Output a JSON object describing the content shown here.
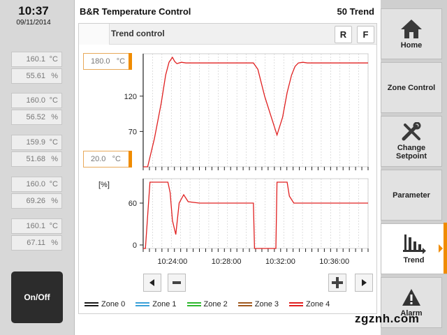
{
  "clock": {
    "time": "10:37",
    "date": "09/11/2014"
  },
  "zones": [
    {
      "temp": "160.1",
      "temp_unit": "°C",
      "output": "55.61",
      "output_unit": "%"
    },
    {
      "temp": "160.0",
      "temp_unit": "°C",
      "output": "56.52",
      "output_unit": "%"
    },
    {
      "temp": "159.9",
      "temp_unit": "°C",
      "output": "51.68",
      "output_unit": "%"
    },
    {
      "temp": "160.0",
      "temp_unit": "°C",
      "output": "69.26",
      "output_unit": "%"
    },
    {
      "temp": "160.1",
      "temp_unit": "°C",
      "output": "67.11",
      "output_unit": "%"
    }
  ],
  "onoff_label": "On/Off",
  "header": {
    "title": "B&R Temperature Control",
    "screen_id": "50 Trend"
  },
  "trend": {
    "title": "Trend control",
    "btn_r": "R",
    "btn_f": "F",
    "range_max": {
      "value": "180.0",
      "unit": "°C"
    },
    "range_min": {
      "value": "20.0",
      "unit": "°C"
    }
  },
  "legend": [
    {
      "label": "Zone 0",
      "color": "#1a1a1a"
    },
    {
      "label": "Zone 1",
      "color": "#3aa0d8"
    },
    {
      "label": "Zone 2",
      "color": "#2db82d"
    },
    {
      "label": "Zone 3",
      "color": "#a0581e"
    },
    {
      "label": "Zone 4",
      "color": "#e02020"
    }
  ],
  "nav": [
    {
      "label": "Home",
      "icon": "home-icon"
    },
    {
      "label": "Zone Control",
      "icon": ""
    },
    {
      "label": "Change Setpoint",
      "icon": "wrench-screwdriver-icon"
    },
    {
      "label": "Parameter",
      "icon": ""
    },
    {
      "label": "Trend",
      "icon": "trend-chart-icon",
      "active": true
    },
    {
      "label": "Alarm",
      "icon": "warning-icon"
    }
  ],
  "watermark": "zgznh.com",
  "chart_data": [
    {
      "type": "line",
      "title": "",
      "xlabel": "",
      "ylabel": "",
      "unit": "°C",
      "ylim": [
        20,
        180
      ],
      "yticks": [
        "120",
        "70"
      ],
      "xlim": [
        "10:21:50",
        "10:38:30"
      ],
      "series": [
        {
          "name": "Zone 4",
          "color": "#e02020",
          "x": [
            "10:21:50",
            "10:22:10",
            "10:22:40",
            "10:23:10",
            "10:23:30",
            "10:23:45",
            "10:24:00",
            "10:24:10",
            "10:24:20",
            "10:24:40",
            "10:25:00",
            "10:26:00",
            "10:28:00",
            "10:30:00",
            "10:30:20",
            "10:30:50",
            "10:31:20",
            "10:31:45",
            "10:32:10",
            "10:32:30",
            "10:32:50",
            "10:33:05",
            "10:33:20",
            "10:33:40",
            "10:34:00",
            "10:36:00",
            "10:38:30"
          ],
          "y": [
            20,
            20,
            60,
            110,
            150,
            168,
            175,
            169,
            166,
            168,
            167,
            167,
            167,
            167,
            158,
            120,
            90,
            65,
            90,
            125,
            150,
            162,
            167,
            168,
            167,
            167,
            167
          ]
        }
      ],
      "series_overlap_note": ""
    },
    {
      "type": "line",
      "title": "",
      "xlabel": "",
      "ylabel": "[%]",
      "ylim": [
        -5,
        95
      ],
      "yticks": [
        "60",
        "0"
      ],
      "xticks": [
        "10:24:00",
        "10:28:00",
        "10:32:00",
        "10:36:00"
      ],
      "series": [
        {
          "name": "Zone 4",
          "color": "#e02020",
          "x": [
            "10:21:50",
            "10:22:00",
            "10:22:20",
            "10:23:40",
            "10:23:50",
            "10:24:00",
            "10:24:15",
            "10:24:30",
            "10:24:50",
            "10:25:10",
            "10:26:00",
            "10:28:00",
            "10:30:00",
            "10:30:05",
            "10:31:40",
            "10:31:45",
            "10:32:30",
            "10:32:40",
            "10:33:00",
            "10:33:30",
            "10:34:00",
            "10:36:00",
            "10:38:30"
          ],
          "y": [
            -5,
            -5,
            90,
            90,
            75,
            35,
            15,
            60,
            72,
            62,
            60,
            60,
            60,
            -5,
            -5,
            90,
            90,
            70,
            60,
            60,
            60,
            60,
            60
          ]
        }
      ]
    }
  ]
}
